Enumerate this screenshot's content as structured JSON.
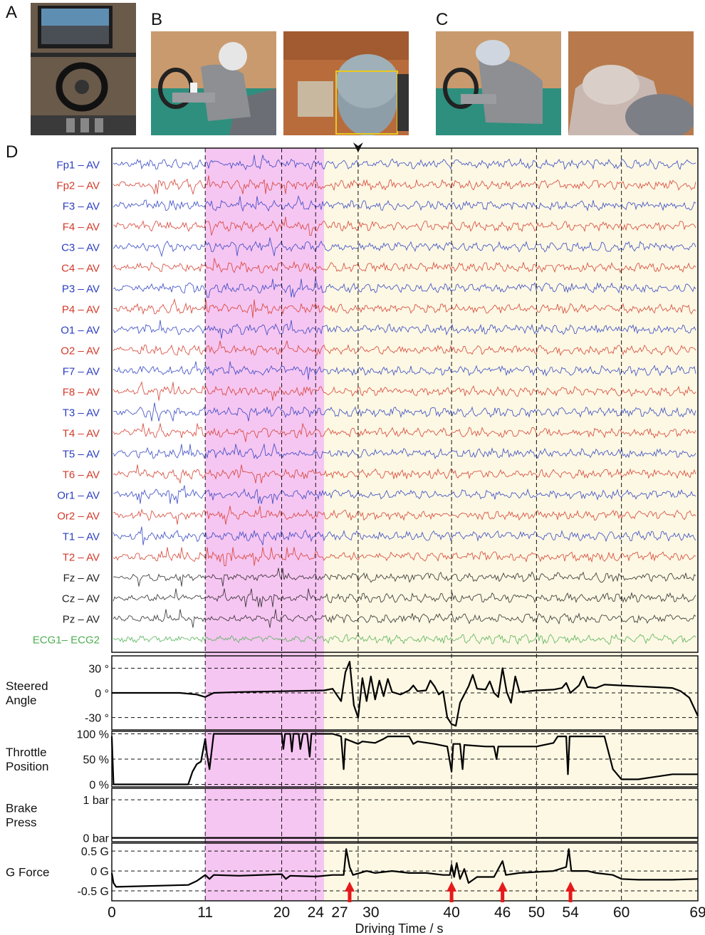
{
  "panel_letters": {
    "a": "A",
    "b": "B",
    "c": "C",
    "d": "D"
  },
  "colors": {
    "blue": "#2b3fbf",
    "red": "#d23a2a",
    "black": "#222222",
    "green": "#4caf50",
    "pink_band": "#f6c6f2",
    "yellow_band": "#fdf8e4"
  },
  "chart_data": {
    "type": "line",
    "xlabel": "Driving Time / s",
    "xlim": [
      0,
      69
    ],
    "x_ticks": [
      0,
      11,
      20,
      24,
      27,
      30,
      40,
      46,
      50,
      54,
      60,
      69
    ],
    "x_tick_labels": [
      "0",
      "11",
      "20",
      "24",
      "27",
      "30",
      "40",
      "46",
      "50",
      "54",
      "60",
      "69"
    ],
    "dashed_times": [
      11,
      20,
      24,
      29,
      40,
      50,
      60
    ],
    "arrowhead_time": 29,
    "highlight_bands": [
      {
        "start": 11,
        "end": 25,
        "color": "#f6c6f2"
      },
      {
        "start": 25,
        "end": 69,
        "color": "#fdf8e4"
      }
    ],
    "red_arrow_times": [
      28,
      40,
      46,
      54
    ],
    "eeg_channels": [
      {
        "label": "Fp1 – AV",
        "color": "blue"
      },
      {
        "label": "Fp2 – AV",
        "color": "red"
      },
      {
        "label": "F3 – AV",
        "color": "blue"
      },
      {
        "label": "F4 – AV",
        "color": "red"
      },
      {
        "label": "C3 – AV",
        "color": "blue"
      },
      {
        "label": "C4 – AV",
        "color": "red"
      },
      {
        "label": "P3 – AV",
        "color": "blue"
      },
      {
        "label": "P4 – AV",
        "color": "red"
      },
      {
        "label": "O1 – AV",
        "color": "blue"
      },
      {
        "label": "O2 – AV",
        "color": "red"
      },
      {
        "label": "F7 – AV",
        "color": "blue"
      },
      {
        "label": "F8 – AV",
        "color": "red"
      },
      {
        "label": "T3 – AV",
        "color": "blue"
      },
      {
        "label": "T4 – AV",
        "color": "red"
      },
      {
        "label": "T5 – AV",
        "color": "blue"
      },
      {
        "label": "T6 – AV",
        "color": "red"
      },
      {
        "label": "Or1 – AV",
        "color": "blue"
      },
      {
        "label": "Or2 – AV",
        "color": "red"
      },
      {
        "label": "T1 – AV",
        "color": "blue"
      },
      {
        "label": "T2 – AV",
        "color": "red"
      },
      {
        "label": "Fz – AV",
        "color": "black"
      },
      {
        "label": "Cz – AV",
        "color": "black"
      },
      {
        "label": "Pz – AV",
        "color": "black"
      },
      {
        "label": "ECG1– ECG2",
        "color": "green"
      }
    ],
    "subplots": [
      {
        "name": "Steered\nAngle",
        "y_ticks": [
          "30 °",
          "0 °",
          "-30 °"
        ],
        "y_tick_values": [
          30,
          0,
          -30
        ],
        "ylim": [
          -45,
          45
        ],
        "series": [
          [
            0,
            0
          ],
          [
            8,
            0
          ],
          [
            10,
            -2
          ],
          [
            11,
            -5
          ],
          [
            12,
            0
          ],
          [
            15,
            1
          ],
          [
            20,
            2
          ],
          [
            25,
            3
          ],
          [
            26,
            5
          ],
          [
            27,
            -10
          ],
          [
            27.5,
            25
          ],
          [
            28,
            38
          ],
          [
            28.5,
            -15
          ],
          [
            29,
            -30
          ],
          [
            29.5,
            18
          ],
          [
            30,
            -10
          ],
          [
            30.5,
            20
          ],
          [
            31,
            -8
          ],
          [
            31.5,
            15
          ],
          [
            32,
            -4
          ],
          [
            32.5,
            17
          ],
          [
            33,
            1
          ],
          [
            34,
            -2
          ],
          [
            35,
            3
          ],
          [
            35.5,
            9
          ],
          [
            36,
            2
          ],
          [
            37,
            3
          ],
          [
            37.5,
            15
          ],
          [
            38,
            8
          ],
          [
            38.5,
            -2
          ],
          [
            39,
            2
          ],
          [
            39.5,
            -30
          ],
          [
            40,
            -38
          ],
          [
            40.5,
            -40
          ],
          [
            41,
            -12
          ],
          [
            41.5,
            -2
          ],
          [
            42,
            8
          ],
          [
            42.5,
            22
          ],
          [
            43,
            5
          ],
          [
            44,
            4
          ],
          [
            44.5,
            14
          ],
          [
            45,
            0
          ],
          [
            45.5,
            -5
          ],
          [
            46,
            30
          ],
          [
            46.5,
            1
          ],
          [
            47,
            -12
          ],
          [
            47.5,
            20
          ],
          [
            48,
            1
          ],
          [
            49,
            2
          ],
          [
            50,
            3
          ],
          [
            52,
            4
          ],
          [
            53,
            6
          ],
          [
            53.5,
            12
          ],
          [
            54,
            0
          ],
          [
            55,
            9
          ],
          [
            55.5,
            20
          ],
          [
            56,
            7
          ],
          [
            57,
            6
          ],
          [
            58,
            10
          ],
          [
            60,
            9
          ],
          [
            62,
            8
          ],
          [
            64,
            7
          ],
          [
            66,
            6
          ],
          [
            67,
            2
          ],
          [
            68,
            -6
          ],
          [
            69,
            -28
          ]
        ]
      },
      {
        "name": "Throttle\nPosition",
        "y_ticks": [
          "100 %",
          "50 %",
          "0 %"
        ],
        "y_tick_values": [
          100,
          50,
          0
        ],
        "ylim": [
          -5,
          105
        ],
        "series": [
          [
            0,
            95
          ],
          [
            0.2,
            0
          ],
          [
            9,
            0
          ],
          [
            9.5,
            25
          ],
          [
            10,
            40
          ],
          [
            10.5,
            45
          ],
          [
            11,
            90
          ],
          [
            11.2,
            60
          ],
          [
            11.5,
            30
          ],
          [
            12,
            100
          ],
          [
            20,
            100
          ],
          [
            20.2,
            70
          ],
          [
            20.4,
            100
          ],
          [
            21,
            100
          ],
          [
            21.2,
            65
          ],
          [
            21.4,
            100
          ],
          [
            22,
            100
          ],
          [
            22.2,
            70
          ],
          [
            22.5,
            100
          ],
          [
            23,
            100
          ],
          [
            23.3,
            55
          ],
          [
            23.5,
            100
          ],
          [
            25,
            100
          ],
          [
            26,
            100
          ],
          [
            27,
            95
          ],
          [
            27.3,
            30
          ],
          [
            27.5,
            90
          ],
          [
            29,
            80
          ],
          [
            29.5,
            85
          ],
          [
            31,
            82
          ],
          [
            32,
            90
          ],
          [
            32.5,
            95
          ],
          [
            35,
            95
          ],
          [
            35.5,
            80
          ],
          [
            36,
            85
          ],
          [
            38,
            80
          ],
          [
            39.5,
            75
          ],
          [
            40,
            25
          ],
          [
            40.2,
            80
          ],
          [
            41,
            80
          ],
          [
            41.3,
            30
          ],
          [
            41.5,
            78
          ],
          [
            44,
            75
          ],
          [
            45,
            75
          ],
          [
            45.3,
            50
          ],
          [
            45.5,
            75
          ],
          [
            50,
            75
          ],
          [
            52,
            82
          ],
          [
            52.5,
            95
          ],
          [
            53.5,
            95
          ],
          [
            53.7,
            20
          ],
          [
            53.9,
            95
          ],
          [
            57,
            95
          ],
          [
            58,
            95
          ],
          [
            59,
            30
          ],
          [
            60,
            10
          ],
          [
            62,
            10
          ],
          [
            64,
            15
          ],
          [
            66,
            20
          ],
          [
            67,
            20
          ],
          [
            69,
            20
          ]
        ]
      },
      {
        "name": "Brake\nPress",
        "y_ticks": [
          "1 bar",
          "0 bar"
        ],
        "y_tick_values": [
          1,
          0
        ],
        "ylim": [
          -0.1,
          1.3
        ],
        "series": [
          [
            0,
            0
          ],
          [
            69,
            0
          ]
        ]
      },
      {
        "name": "G Force",
        "y_ticks": [
          "0.5 G",
          "0 G",
          "-0.5 G"
        ],
        "y_tick_values": [
          0.5,
          0,
          -0.5
        ],
        "ylim": [
          -0.75,
          0.7
        ],
        "series": [
          [
            0,
            -0.05
          ],
          [
            0.2,
            -0.3
          ],
          [
            0.5,
            -0.4
          ],
          [
            9,
            -0.35
          ],
          [
            10,
            -0.25
          ],
          [
            11,
            -0.1
          ],
          [
            11.5,
            -0.2
          ],
          [
            12,
            -0.1
          ],
          [
            15,
            -0.12
          ],
          [
            20,
            -0.08
          ],
          [
            20.5,
            -0.2
          ],
          [
            21,
            -0.12
          ],
          [
            24,
            -0.14
          ],
          [
            26,
            -0.1
          ],
          [
            27.3,
            -0.1
          ],
          [
            27.6,
            0.55
          ],
          [
            28,
            0.1
          ],
          [
            28.4,
            -0.1
          ],
          [
            30,
            0
          ],
          [
            31,
            -0.05
          ],
          [
            33,
            0
          ],
          [
            35,
            -0.05
          ],
          [
            37,
            -0.05
          ],
          [
            39,
            -0.1
          ],
          [
            39.8,
            -0.1
          ],
          [
            40,
            0.15
          ],
          [
            40.3,
            -0.15
          ],
          [
            40.6,
            0.2
          ],
          [
            41,
            -0.2
          ],
          [
            41.5,
            0.05
          ],
          [
            42,
            -0.3
          ],
          [
            43,
            -0.15
          ],
          [
            45,
            -0.15
          ],
          [
            46,
            0.25
          ],
          [
            46.4,
            -0.1
          ],
          [
            48,
            -0.05
          ],
          [
            52,
            0
          ],
          [
            53.5,
            0.1
          ],
          [
            53.8,
            0.55
          ],
          [
            54.1,
            0
          ],
          [
            56,
            0
          ],
          [
            57,
            -0.05
          ],
          [
            59,
            -0.1
          ],
          [
            60,
            -0.2
          ],
          [
            62,
            -0.22
          ],
          [
            66,
            -0.22
          ],
          [
            69,
            -0.2
          ]
        ]
      }
    ]
  }
}
